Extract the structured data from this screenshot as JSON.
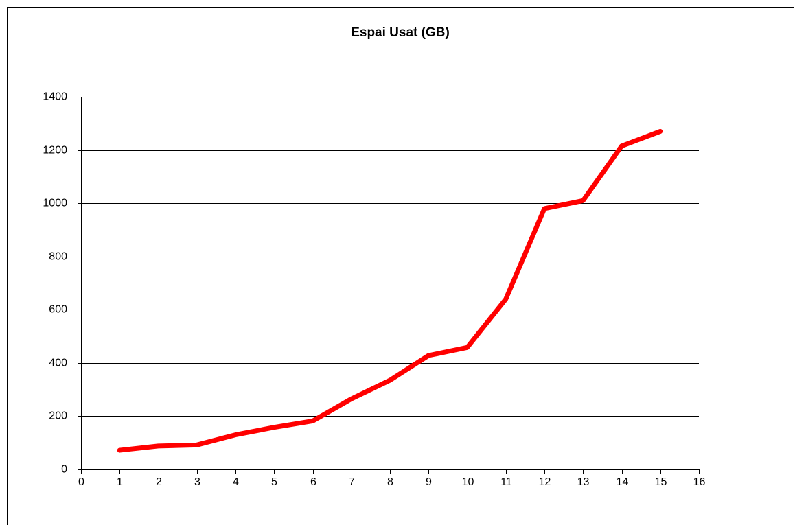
{
  "chart_data": {
    "type": "line",
    "title": "Espai Usat (GB)",
    "x": [
      1,
      2,
      3,
      4,
      5,
      6,
      7,
      8,
      9,
      10,
      11,
      12,
      13,
      14,
      15
    ],
    "values": [
      72,
      88,
      92,
      130,
      158,
      182,
      265,
      335,
      428,
      458,
      640,
      980,
      1010,
      1215,
      1270
    ],
    "color": "#ff0000",
    "xlim": [
      0,
      16
    ],
    "xticks": [
      0,
      1,
      2,
      3,
      4,
      5,
      6,
      7,
      8,
      9,
      10,
      11,
      12,
      13,
      14,
      15,
      16
    ],
    "ylim": [
      0,
      1400
    ],
    "yticks": [
      0,
      200,
      400,
      600,
      800,
      1000,
      1200,
      1400
    ],
    "grid": true
  }
}
